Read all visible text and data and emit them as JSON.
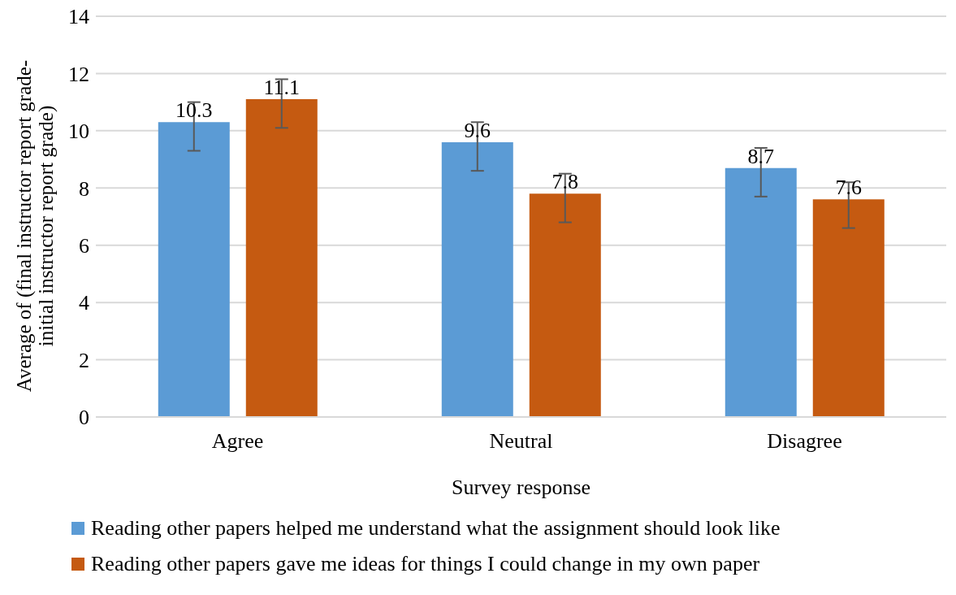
{
  "chart_data": {
    "type": "bar",
    "xlabel": "Survey response",
    "ylabel": "Average of (final instructor report grade-initial instructor report grade)",
    "categories": [
      "Agree",
      "Neutral",
      "Disagree"
    ],
    "series": [
      {
        "name": "Reading other papers helped me understand what the assignment should look like",
        "color": "#5b9bd5",
        "values": [
          10.3,
          9.6,
          8.7
        ],
        "errors": [
          [
            9.3,
            11.0
          ],
          [
            8.6,
            10.3
          ],
          [
            7.7,
            9.4
          ]
        ]
      },
      {
        "name": "Reading other papers gave me ideas for things I could change in my own paper",
        "color": "#c55a11",
        "values": [
          11.1,
          7.8,
          7.6
        ],
        "errors": [
          [
            10.1,
            11.8
          ],
          [
            6.8,
            8.5
          ],
          [
            6.6,
            8.2
          ]
        ]
      }
    ],
    "ylim": [
      0,
      14
    ],
    "yticks": [
      0,
      2,
      4,
      6,
      8,
      10,
      12,
      14
    ],
    "grid": "y",
    "legend": "bottom",
    "data_labels": true
  }
}
